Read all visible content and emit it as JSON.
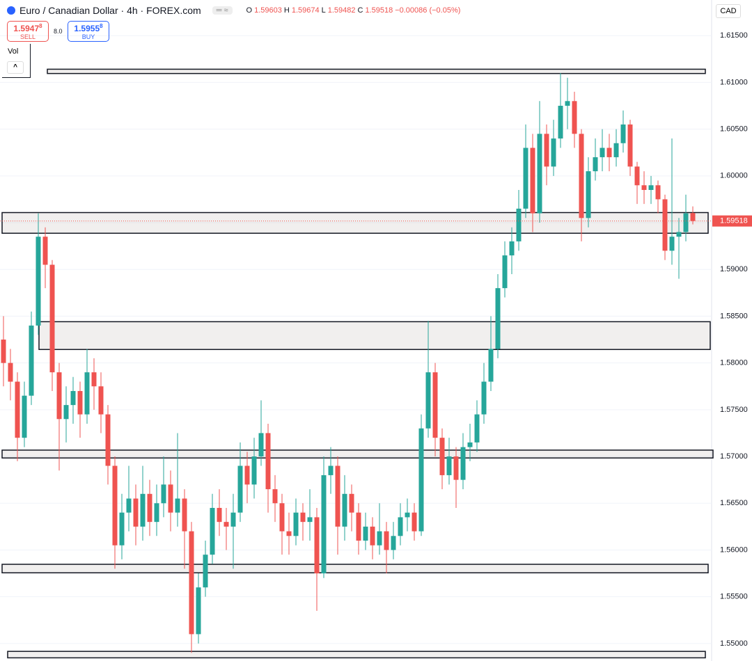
{
  "chart_data": {
    "type": "candlestick",
    "title": "Euro / Canadian Dollar · 4h · FOREX.com",
    "ohlc_labels": [
      "O",
      "H",
      "L",
      "C"
    ],
    "ohlc_values": [
      1.59603,
      1.59674,
      1.59482,
      1.59518
    ],
    "change": "−0.00086 (−0.05%)",
    "sell_price": "1.5947",
    "sell_pip": "8",
    "sell_label": "SELL",
    "spread": "8.0",
    "buy_price": "1.5955",
    "buy_pip": "8",
    "buy_label": "BUY",
    "volume_label": "Vol",
    "currency": "CAD",
    "last_price": 1.59518,
    "xlim": [
      -0.5,
      101.7
    ],
    "ylim": [
      1.54813,
      1.61881
    ],
    "yticks": [
      {
        "value": 1.615,
        "label": "1.61500"
      },
      {
        "value": 1.61,
        "label": "1.61000"
      },
      {
        "value": 1.605,
        "label": "1.60500"
      },
      {
        "value": 1.6,
        "label": "1.60000"
      },
      {
        "value": 1.595,
        "label": "1.59500"
      },
      {
        "value": 1.59,
        "label": "1.59000"
      },
      {
        "value": 1.585,
        "label": "1.58500"
      },
      {
        "value": 1.58,
        "label": "1.58000"
      },
      {
        "value": 1.575,
        "label": "1.57500"
      },
      {
        "value": 1.57,
        "label": "1.57000"
      },
      {
        "value": 1.565,
        "label": "1.56500"
      },
      {
        "value": 1.56,
        "label": "1.56000"
      },
      {
        "value": 1.555,
        "label": "1.55500"
      },
      {
        "value": 1.55,
        "label": "1.55000"
      }
    ],
    "grid": true,
    "up_color": "#26a69a",
    "down_color": "#ef5350",
    "zones": [
      {
        "low": 1.61095,
        "high": 1.61141,
        "x_range": [
          6.3,
          100.8
        ]
      },
      {
        "low": 1.59387,
        "high": 1.59608,
        "x_range": [
          -0.2,
          101.2
        ]
      },
      {
        "low": 1.58144,
        "high": 1.58441,
        "x_range": [
          5.1,
          101.5
        ]
      },
      {
        "low": 1.56984,
        "high": 1.57068,
        "x_range": [
          -0.2,
          101.9
        ]
      },
      {
        "low": 1.55756,
        "high": 1.55847,
        "x_range": [
          -0.2,
          101.2
        ]
      },
      {
        "low": 1.54847,
        "high": 1.54916,
        "x_range": [
          0.6,
          100.8
        ]
      }
    ],
    "open": [
      1.5825,
      1.58,
      1.578,
      1.572,
      1.5765,
      1.584,
      1.5935,
      1.5905,
      1.579,
      1.574,
      1.5755,
      1.577,
      1.5745,
      1.579,
      1.5775,
      1.5745,
      1.569,
      1.5605,
      1.564,
      1.5655,
      1.5625,
      1.566,
      1.563,
      1.565,
      1.567,
      1.564,
      1.5655,
      1.562,
      1.551,
      1.556,
      1.5595,
      1.5645,
      1.563,
      1.5625,
      1.564,
      1.569,
      1.567,
      1.57,
      1.5725,
      1.5665,
      1.565,
      1.562,
      1.5615,
      1.564,
      1.563,
      1.5635,
      1.5575,
      1.568,
      1.569,
      1.5625,
      1.566,
      1.564,
      1.561,
      1.5625,
      1.5605,
      1.562,
      1.56,
      1.5615,
      1.5635,
      1.564,
      1.562,
      1.573,
      1.579,
      1.572,
      1.568,
      1.57,
      1.5675,
      1.571,
      1.5715,
      1.5745,
      1.578,
      1.5815,
      1.588,
      1.5915,
      1.593,
      1.5965,
      1.603,
      1.596,
      1.6045,
      1.601,
      1.604,
      1.6075,
      1.608,
      1.6045,
      1.5955,
      1.6005,
      1.602,
      1.603,
      1.602,
      1.6035,
      1.6055,
      1.601,
      1.599,
      1.5985,
      1.599,
      1.5975,
      1.592,
      1.5935,
      1.594,
      1.59603
    ],
    "high": [
      1.585,
      1.5815,
      1.579,
      1.578,
      1.5855,
      1.596,
      1.5945,
      1.591,
      1.58,
      1.5775,
      1.5785,
      1.578,
      1.5815,
      1.5805,
      1.579,
      1.5755,
      1.57,
      1.566,
      1.569,
      1.567,
      1.569,
      1.5675,
      1.567,
      1.57,
      1.5685,
      1.5725,
      1.5665,
      1.563,
      1.5575,
      1.561,
      1.566,
      1.5665,
      1.5645,
      1.566,
      1.5715,
      1.5705,
      1.572,
      1.576,
      1.5735,
      1.568,
      1.566,
      1.564,
      1.5655,
      1.565,
      1.5665,
      1.5645,
      1.57,
      1.571,
      1.57,
      1.568,
      1.567,
      1.565,
      1.564,
      1.5635,
      1.565,
      1.563,
      1.563,
      1.565,
      1.5655,
      1.565,
      1.5745,
      1.5845,
      1.58,
      1.573,
      1.572,
      1.571,
      1.5725,
      1.5735,
      1.576,
      1.58,
      1.585,
      1.5895,
      1.593,
      1.5945,
      1.5985,
      1.6055,
      1.6045,
      1.608,
      1.6055,
      1.606,
      1.611,
      1.6105,
      1.609,
      1.605,
      1.602,
      1.604,
      1.605,
      1.6045,
      1.605,
      1.607,
      1.606,
      1.6015,
      1.6005,
      1.6,
      1.5995,
      1.598,
      1.604,
      1.5955,
      1.598,
      1.59674
    ],
    "low": [
      1.5775,
      1.576,
      1.5695,
      1.571,
      1.5755,
      1.583,
      1.588,
      1.577,
      1.5685,
      1.5715,
      1.5735,
      1.572,
      1.5735,
      1.575,
      1.5725,
      1.567,
      1.558,
      1.559,
      1.562,
      1.5605,
      1.561,
      1.5615,
      1.5615,
      1.5635,
      1.562,
      1.5625,
      1.558,
      1.549,
      1.55,
      1.555,
      1.5585,
      1.5615,
      1.56,
      1.558,
      1.563,
      1.565,
      1.5655,
      1.569,
      1.564,
      1.563,
      1.5595,
      1.5595,
      1.5605,
      1.561,
      1.561,
      1.5535,
      1.557,
      1.566,
      1.5595,
      1.561,
      1.562,
      1.5595,
      1.56,
      1.559,
      1.5595,
      1.5575,
      1.559,
      1.5605,
      1.562,
      1.561,
      1.5615,
      1.572,
      1.57,
      1.5665,
      1.567,
      1.5645,
      1.5665,
      1.5695,
      1.5705,
      1.5735,
      1.577,
      1.5805,
      1.587,
      1.5895,
      1.592,
      1.5955,
      1.594,
      1.595,
      1.599,
      1.6,
      1.603,
      1.605,
      1.603,
      1.593,
      1.5945,
      1.5995,
      1.6005,
      1.6005,
      1.601,
      1.6025,
      1.6,
      1.597,
      1.597,
      1.597,
      1.596,
      1.591,
      1.5905,
      1.589,
      1.593,
      1.59482
    ],
    "close": [
      1.58,
      1.578,
      1.572,
      1.5765,
      1.584,
      1.5935,
      1.5905,
      1.579,
      1.574,
      1.5755,
      1.577,
      1.5745,
      1.579,
      1.5775,
      1.5745,
      1.569,
      1.5605,
      1.564,
      1.5655,
      1.5625,
      1.566,
      1.563,
      1.565,
      1.567,
      1.564,
      1.5655,
      1.562,
      1.551,
      1.556,
      1.5595,
      1.5645,
      1.563,
      1.5625,
      1.564,
      1.569,
      1.567,
      1.57,
      1.5725,
      1.5665,
      1.565,
      1.562,
      1.5615,
      1.564,
      1.563,
      1.5635,
      1.5575,
      1.568,
      1.569,
      1.5625,
      1.566,
      1.564,
      1.561,
      1.5625,
      1.5605,
      1.562,
      1.56,
      1.5615,
      1.5635,
      1.564,
      1.562,
      1.573,
      1.579,
      1.572,
      1.568,
      1.57,
      1.5675,
      1.571,
      1.5715,
      1.5745,
      1.578,
      1.5815,
      1.588,
      1.5915,
      1.593,
      1.5965,
      1.603,
      1.596,
      1.6045,
      1.601,
      1.604,
      1.6075,
      1.608,
      1.6045,
      1.5955,
      1.6005,
      1.602,
      1.603,
      1.602,
      1.6035,
      1.6055,
      1.601,
      1.599,
      1.5985,
      1.599,
      1.5975,
      1.592,
      1.5935,
      1.594,
      1.596,
      1.59518
    ]
  }
}
